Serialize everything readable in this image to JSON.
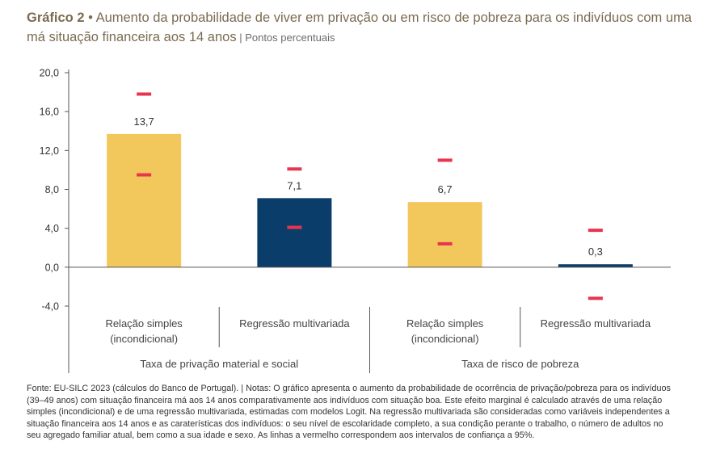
{
  "title": {
    "number": "Gráfico 2",
    "separator": " • ",
    "text": "Aumento da probabilidade de viver em privação ou em risco de pobreza para os indivíduos com uma má situação financeira aos 14 anos",
    "unit_separator": " | ",
    "unit": "Pontos percentuais"
  },
  "chart_data": {
    "type": "bar",
    "title": "Aumento da probabilidade de viver em privação ou em risco de pobreza para os indivíduos com uma má situação financeira aos 14 anos",
    "ylabel": "Pontos percentuais",
    "ylim": [
      -4.0,
      20.0
    ],
    "yticks": [
      "20,0",
      "16,0",
      "12,0",
      "8,0",
      "4,0",
      "0,0",
      "-4,0"
    ],
    "ytick_values": [
      20,
      16,
      12,
      8,
      4,
      0,
      -4
    ],
    "groups": [
      "Taxa de privação material e social",
      "Taxa de risco de pobreza"
    ],
    "categories": [
      {
        "line1": "Relação simples",
        "line2": "(incondicional)"
      },
      {
        "line1": "Regressão multivariada",
        "line2": ""
      },
      {
        "line1": "Relação simples",
        "line2": "(incondicional)"
      },
      {
        "line1": "Regressão multivariada",
        "line2": ""
      }
    ],
    "values": [
      13.7,
      7.1,
      6.7,
      0.3
    ],
    "value_labels": [
      "13,7",
      "7,1",
      "6,7",
      "0,3"
    ],
    "ci_upper": [
      17.8,
      10.1,
      11.0,
      3.8
    ],
    "ci_lower": [
      9.5,
      4.1,
      2.4,
      -3.2
    ],
    "colors": [
      "#f2c75c",
      "#0b3d6b",
      "#f2c75c",
      "#0b3d6b"
    ],
    "ci_color": "#e8344e",
    "axis_color": "#555555"
  },
  "notes": "Fonte: EU-SILC 2023 (cálculos do Banco de Portugal). | Notas: O gráfico apresenta o aumento da probabilidade de ocorrência de privação/pobreza para os indivíduos (39–49 anos) com situação financeira má aos 14 anos comparativamente aos indivíduos com situação boa. Este efeito marginal é calculado através de uma relação simples (incondicional) e de uma regressão multivariada, estimadas com modelos Logit. Na regressão multivariada são consideradas como variáveis independentes a situação financeira aos 14 anos e as caraterísticas dos indivíduos: o seu nível de escolaridade completo, a sua condição perante o trabalho, o número de adultos no seu agregado familiar atual, bem como a sua idade e sexo. As linhas a vermelho correspondem aos intervalos de confiança a 95%."
}
